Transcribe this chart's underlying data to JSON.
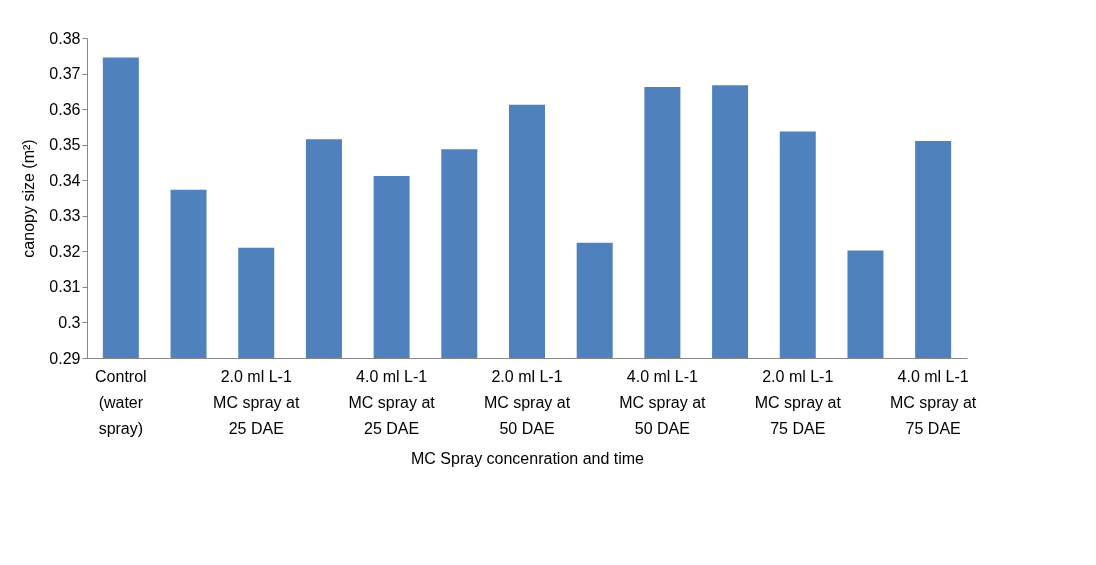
{
  "chart_data": {
    "type": "bar",
    "categories": [
      "Control\n(water\nspray)",
      null,
      "2.0 ml  L-1\nMC spray at\n25 DAE",
      null,
      "4.0 ml  L-1\nMC spray at\n25 DAE",
      null,
      "2.0 ml  L-1\nMC spray at\n50 DAE",
      null,
      "4.0 ml  L-1\nMC spray at\n50 DAE",
      null,
      "2.0  ml  L-1\nMC spray at\n75 DAE",
      null,
      "4.0 ml L-1\nMC spray at\n75 DAE"
    ],
    "values": [
      0.3745,
      0.3373,
      0.321,
      0.3515,
      0.3412,
      0.3487,
      0.3612,
      0.3224,
      0.3662,
      0.3667,
      0.3537,
      0.3202,
      0.351
    ],
    "color": "#4f81bd",
    "xlabel": "MC Spray concenration and time",
    "ylabel": "canopy size (m²)",
    "ylim": [
      0.29,
      0.38
    ],
    "yticks": [
      0.29,
      0.3,
      0.31,
      0.32,
      0.33,
      0.34,
      0.35,
      0.36,
      0.37,
      0.38
    ],
    "grid": false
  }
}
